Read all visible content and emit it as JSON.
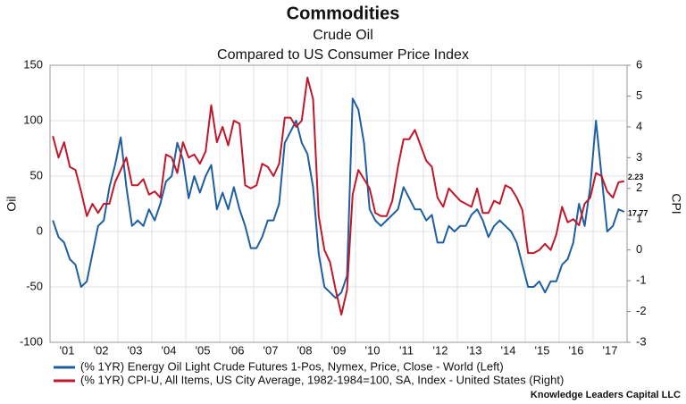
{
  "chart_data": {
    "type": "line",
    "title": "Commodities",
    "subtitle": "Crude Oil",
    "subtitle2": "Compared to US Consumer Price Index",
    "y_label": "Oil",
    "y2_label": "CPI",
    "source": "Knowledge Leaders Capital LLC",
    "categories": [
      null,
      null,
      "'01",
      null,
      null,
      null,
      null,
      null,
      "'02",
      null,
      null,
      null,
      null,
      null,
      "'03",
      null,
      null,
      null,
      null,
      null,
      "'04",
      null,
      null,
      null,
      null,
      null,
      "'05",
      null,
      null,
      null,
      null,
      null,
      "'06",
      null,
      null,
      null,
      null,
      null,
      "'07",
      null,
      null,
      null,
      null,
      null,
      "'08",
      null,
      null,
      null,
      null,
      null,
      "'09",
      null,
      null,
      null,
      null,
      null,
      "'10",
      null,
      null,
      null,
      null,
      null,
      "'11",
      null,
      null,
      null,
      null,
      null,
      "'12",
      null,
      null,
      null,
      null,
      null,
      "'13",
      null,
      null,
      null,
      null,
      null,
      "'14",
      null,
      null,
      null,
      null,
      null,
      "'15",
      null,
      null,
      null,
      null,
      null,
      "'16",
      null,
      null,
      null,
      null,
      null,
      "'17",
      null,
      null,
      null
    ],
    "series": [
      {
        "name": "(% 1YR) Energy Oil Light Crude Futures 1-Pos, Nymex, Price, Close - World  (Left)",
        "color": "#1f5fa0",
        "axis": "y",
        "values": [
          10,
          -5,
          -10,
          -25,
          -30,
          -50,
          -45,
          -20,
          5,
          10,
          40,
          60,
          85,
          40,
          5,
          10,
          5,
          20,
          10,
          25,
          45,
          50,
          80,
          65,
          30,
          50,
          35,
          50,
          60,
          20,
          35,
          20,
          40,
          20,
          5,
          -15,
          -15,
          -5,
          10,
          10,
          25,
          80,
          90,
          100,
          80,
          70,
          40,
          -20,
          -50,
          -55,
          -60,
          -55,
          -40,
          120,
          110,
          80,
          20,
          10,
          5,
          10,
          15,
          20,
          40,
          30,
          20,
          20,
          10,
          15,
          -10,
          -10,
          5,
          0,
          5,
          5,
          15,
          20,
          10,
          -5,
          5,
          10,
          5,
          0,
          -10,
          -30,
          -50,
          -50,
          -45,
          -55,
          -45,
          -45,
          -30,
          -25,
          -10,
          25,
          5,
          40,
          100,
          50,
          0,
          5,
          20,
          17.77
        ]
      },
      {
        "name": "(% 1YR) CPI-U, All Items, US City Average, 1982-1984=100, SA, Index - United States  (Right)",
        "color": "#c0172b",
        "axis": "y2",
        "values": [
          3.7,
          3.0,
          3.5,
          2.7,
          2.6,
          1.9,
          1.1,
          1.5,
          1.2,
          1.5,
          1.5,
          2.2,
          2.6,
          3.0,
          2.1,
          2.1,
          2.3,
          1.8,
          1.9,
          1.7,
          3.1,
          3.0,
          2.5,
          3.5,
          3.0,
          3.1,
          2.8,
          3.2,
          4.7,
          3.5,
          4.0,
          3.4,
          4.2,
          4.1,
          2.1,
          2.0,
          2.1,
          2.8,
          2.7,
          2.4,
          2.8,
          4.3,
          4.3,
          4.0,
          4.2,
          5.6,
          4.9,
          1.1,
          0.0,
          -0.4,
          -1.3,
          -2.1,
          -1.3,
          1.8,
          2.6,
          2.3,
          2.0,
          1.2,
          1.1,
          1.1,
          1.6,
          2.7,
          3.6,
          3.6,
          3.9,
          3.4,
          2.9,
          2.7,
          1.7,
          1.4,
          2.0,
          1.8,
          1.6,
          1.5,
          1.4,
          2.0,
          1.2,
          1.2,
          1.6,
          1.5,
          2.1,
          2.0,
          1.7,
          1.3,
          -0.1,
          -0.1,
          0.0,
          0.2,
          0.0,
          0.5,
          1.4,
          0.9,
          1.0,
          0.8,
          1.5,
          1.7,
          2.5,
          2.4,
          1.9,
          1.7,
          2.2,
          2.23
        ]
      }
    ],
    "ylim": [
      -100,
      150
    ],
    "yticks": [
      -100,
      -50,
      0,
      50,
      100,
      150
    ],
    "y2lim": [
      -3,
      6
    ],
    "y2ticks": [
      -3,
      -2,
      -1,
      0,
      1,
      2,
      3,
      4,
      5,
      6
    ],
    "grid": true
  }
}
